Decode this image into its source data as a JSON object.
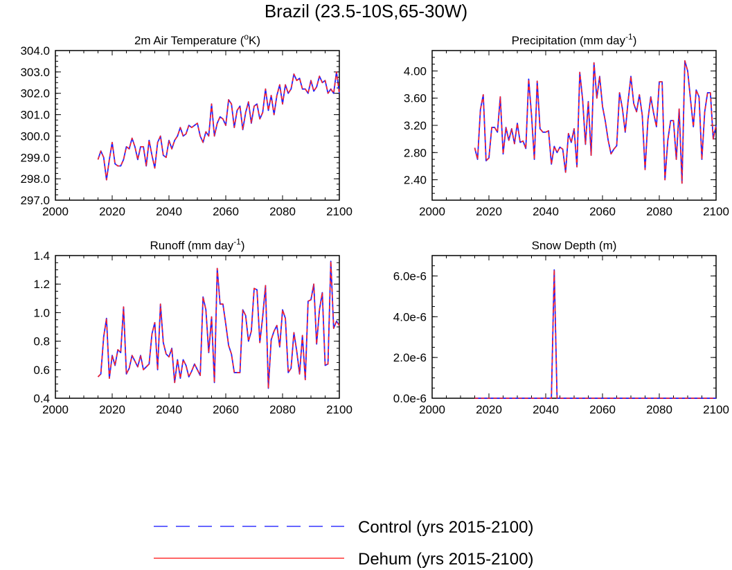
{
  "figure_title": "Brazil (23.5-10S,65-30W)",
  "legend": {
    "items": [
      {
        "label": "Control (yrs 2015-2100)",
        "color": "#3333ff",
        "style": "dashed"
      },
      {
        "label": "Dehum (yrs 2015-2100)",
        "color": "#ff3333",
        "style": "solid"
      }
    ]
  },
  "colors": {
    "control": "#2222ff",
    "dehum": "#ff2222"
  },
  "chart_data": [
    {
      "type": "line",
      "title": "2m Air Temperature (",
      "title_sup": "o",
      "title_tail": "K)",
      "xlim": [
        2000,
        2100
      ],
      "ylim": [
        297.0,
        304.0
      ],
      "xticks": [
        2000,
        2020,
        2040,
        2060,
        2080,
        2100
      ],
      "yticks": [
        297.0,
        298.0,
        299.0,
        300.0,
        301.0,
        302.0,
        303.0,
        304.0
      ],
      "ytick_labels": [
        "297.0",
        "298.0",
        "299.0",
        "300.0",
        "301.0",
        "302.0",
        "303.0",
        "304.0"
      ],
      "x_start": 2015,
      "series": [
        {
          "name": "Control (yrs 2015-2100)",
          "values": [
            298.9,
            299.3,
            299.0,
            297.95,
            298.9,
            299.7,
            298.7,
            298.6,
            298.6,
            298.9,
            299.5,
            299.4,
            299.9,
            299.5,
            298.9,
            299.5,
            299.5,
            298.6,
            299.8,
            299.1,
            298.5,
            299.7,
            300.0,
            299.1,
            299.0,
            299.8,
            299.4,
            299.8,
            300.0,
            300.4,
            300.0,
            300.1,
            300.5,
            300.4,
            300.5,
            300.6,
            300.0,
            299.7,
            300.2,
            300.0,
            301.5,
            300.0,
            300.6,
            300.9,
            300.8,
            300.5,
            301.7,
            301.5,
            300.4,
            301.2,
            301.4,
            300.3,
            301.1,
            301.6,
            300.6,
            301.4,
            301.5,
            300.8,
            301.1,
            302.2,
            301.2,
            301.9,
            301.0,
            301.9,
            302.4,
            301.5,
            302.4,
            302.0,
            302.2,
            302.9,
            302.6,
            302.7,
            302.2,
            302.2,
            302.0,
            302.6,
            302.1,
            302.3,
            302.8,
            302.5,
            302.6,
            302.0,
            302.2,
            302.0,
            303.0,
            302.0
          ]
        },
        {
          "name": "Dehum (yrs 2015-2100)",
          "values": [
            298.9,
            299.3,
            299.0,
            297.95,
            298.9,
            299.7,
            298.7,
            298.6,
            298.6,
            298.9,
            299.5,
            299.4,
            299.9,
            299.5,
            298.9,
            299.5,
            299.5,
            298.6,
            299.8,
            299.1,
            298.5,
            299.7,
            300.0,
            299.1,
            299.0,
            299.8,
            299.4,
            299.8,
            300.0,
            300.4,
            300.0,
            300.1,
            300.5,
            300.4,
            300.5,
            300.6,
            300.0,
            299.7,
            300.2,
            300.0,
            301.5,
            300.0,
            300.6,
            300.9,
            300.8,
            300.5,
            301.7,
            301.5,
            300.4,
            301.2,
            301.4,
            300.3,
            301.1,
            301.6,
            300.6,
            301.4,
            301.5,
            300.8,
            301.1,
            302.2,
            301.2,
            301.9,
            301.0,
            301.9,
            302.4,
            301.5,
            302.4,
            302.0,
            302.2,
            302.9,
            302.6,
            302.7,
            302.2,
            302.2,
            302.0,
            302.6,
            302.1,
            302.3,
            302.8,
            302.5,
            302.6,
            302.0,
            302.2,
            302.0,
            303.0,
            302.0
          ]
        }
      ]
    },
    {
      "type": "line",
      "title": "Precipitation (mm day",
      "title_sup": "-1",
      "title_tail": ")",
      "xlim": [
        2000,
        2100
      ],
      "ylim": [
        2.1,
        4.3
      ],
      "xticks": [
        2000,
        2020,
        2040,
        2060,
        2080,
        2100
      ],
      "yticks": [
        2.4,
        2.8,
        3.2,
        3.6,
        4.0
      ],
      "ytick_labels": [
        "2.40",
        "2.80",
        "3.20",
        "3.60",
        "4.00"
      ],
      "x_start": 2015,
      "series": [
        {
          "name": "Control (yrs 2015-2100)",
          "values": [
            2.87,
            2.7,
            3.43,
            3.65,
            2.68,
            2.72,
            3.17,
            3.17,
            3.1,
            3.62,
            2.78,
            3.17,
            2.98,
            3.15,
            2.93,
            3.23,
            2.95,
            2.97,
            2.86,
            3.88,
            3.35,
            2.7,
            3.85,
            3.15,
            3.1,
            3.1,
            3.12,
            2.63,
            2.89,
            2.8,
            2.88,
            2.85,
            2.51,
            3.08,
            2.95,
            3.15,
            2.59,
            3.98,
            3.58,
            2.92,
            3.55,
            2.76,
            4.12,
            3.6,
            3.92,
            3.48,
            3.26,
            2.98,
            2.78,
            2.85,
            2.9,
            3.68,
            3.45,
            3.1,
            3.55,
            3.92,
            3.52,
            3.4,
            3.65,
            3.35,
            2.55,
            3.28,
            3.62,
            3.38,
            3.18,
            3.84,
            3.84,
            2.4,
            2.98,
            3.27,
            3.27,
            2.7,
            3.44,
            2.35,
            4.15,
            4.0,
            3.58,
            3.18,
            3.72,
            3.62,
            2.7,
            3.4,
            3.68,
            3.68,
            3.0,
            3.2
          ]
        },
        {
          "name": "Dehum (yrs 2015-2100)",
          "values": [
            2.87,
            2.7,
            3.43,
            3.65,
            2.68,
            2.72,
            3.17,
            3.17,
            3.1,
            3.62,
            2.78,
            3.17,
            2.98,
            3.15,
            2.93,
            3.23,
            2.95,
            2.97,
            2.86,
            3.88,
            3.35,
            2.7,
            3.85,
            3.15,
            3.1,
            3.1,
            3.12,
            2.63,
            2.89,
            2.8,
            2.88,
            2.85,
            2.51,
            3.08,
            2.95,
            3.15,
            2.59,
            3.98,
            3.58,
            2.92,
            3.55,
            2.76,
            4.12,
            3.6,
            3.92,
            3.48,
            3.26,
            2.98,
            2.78,
            2.85,
            2.9,
            3.68,
            3.45,
            3.1,
            3.55,
            3.92,
            3.52,
            3.4,
            3.65,
            3.35,
            2.55,
            3.28,
            3.62,
            3.38,
            3.18,
            3.84,
            3.84,
            2.4,
            2.98,
            3.27,
            3.27,
            2.7,
            3.44,
            2.35,
            4.15,
            4.0,
            3.58,
            3.18,
            3.72,
            3.62,
            2.7,
            3.4,
            3.68,
            3.68,
            3.0,
            3.2
          ]
        }
      ]
    },
    {
      "type": "line",
      "title": "Runoff (mm day",
      "title_sup": "-1",
      "title_tail": ")",
      "xlim": [
        2000,
        2100
      ],
      "ylim": [
        0.4,
        1.4
      ],
      "xticks": [
        2000,
        2020,
        2040,
        2060,
        2080,
        2100
      ],
      "yticks": [
        0.4,
        0.6,
        0.8,
        1.0,
        1.2,
        1.4
      ],
      "ytick_labels": [
        "0.4",
        "0.6",
        "0.8",
        "1.0",
        "1.2",
        "1.4"
      ],
      "x_start": 2015,
      "series": [
        {
          "name": "Control (yrs 2015-2100)",
          "values": [
            0.55,
            0.57,
            0.83,
            0.96,
            0.54,
            0.7,
            0.63,
            0.74,
            0.72,
            1.04,
            0.57,
            0.61,
            0.7,
            0.66,
            0.62,
            0.7,
            0.6,
            0.62,
            0.64,
            0.85,
            0.93,
            0.6,
            1.06,
            0.79,
            0.71,
            0.69,
            0.75,
            0.51,
            0.67,
            0.54,
            0.67,
            0.63,
            0.55,
            0.59,
            0.64,
            0.6,
            0.56,
            1.11,
            1.02,
            0.72,
            0.97,
            0.51,
            1.31,
            1.06,
            1.06,
            0.92,
            0.77,
            0.71,
            0.58,
            0.58,
            0.58,
            1.02,
            0.98,
            0.8,
            0.87,
            1.17,
            1.16,
            0.79,
            0.97,
            1.19,
            0.47,
            0.81,
            0.87,
            0.91,
            0.76,
            1.02,
            0.96,
            0.58,
            0.61,
            0.86,
            0.73,
            0.57,
            0.84,
            0.53,
            1.08,
            1.09,
            1.2,
            0.78,
            1.02,
            1.14,
            0.63,
            0.64,
            1.36,
            0.89,
            0.94,
            0.91
          ]
        },
        {
          "name": "Dehum (yrs 2015-2100)",
          "values": [
            0.55,
            0.57,
            0.83,
            0.96,
            0.54,
            0.7,
            0.63,
            0.74,
            0.72,
            1.04,
            0.57,
            0.61,
            0.7,
            0.66,
            0.62,
            0.7,
            0.6,
            0.62,
            0.64,
            0.85,
            0.93,
            0.6,
            1.06,
            0.79,
            0.71,
            0.69,
            0.75,
            0.51,
            0.67,
            0.54,
            0.67,
            0.63,
            0.55,
            0.59,
            0.64,
            0.6,
            0.56,
            1.11,
            1.02,
            0.72,
            0.97,
            0.51,
            1.31,
            1.06,
            1.06,
            0.92,
            0.77,
            0.71,
            0.58,
            0.58,
            0.58,
            1.02,
            0.98,
            0.8,
            0.87,
            1.17,
            1.16,
            0.79,
            0.97,
            1.19,
            0.47,
            0.81,
            0.87,
            0.91,
            0.76,
            1.02,
            0.96,
            0.58,
            0.61,
            0.86,
            0.73,
            0.57,
            0.84,
            0.53,
            1.08,
            1.09,
            1.2,
            0.78,
            1.02,
            1.14,
            0.63,
            0.64,
            1.36,
            0.89,
            0.94,
            0.91
          ]
        }
      ]
    },
    {
      "type": "line",
      "title": "Snow Depth (m)",
      "title_sup": "",
      "title_tail": "",
      "xlim": [
        2000,
        2100
      ],
      "ylim": [
        0,
        7e-06
      ],
      "xticks": [
        2000,
        2020,
        2040,
        2060,
        2080,
        2100
      ],
      "yticks": [
        0,
        2e-06,
        4e-06,
        6e-06
      ],
      "ytick_labels": [
        "0.0e-6",
        "2.0e-6",
        "4.0e-6",
        "6.0e-6"
      ],
      "x_start": 2015,
      "series": [
        {
          "name": "Control (yrs 2015-2100)",
          "values": [
            0,
            0,
            0,
            0,
            0,
            0,
            0,
            0,
            0,
            0,
            0,
            0,
            0,
            0,
            0,
            0,
            0,
            0,
            0,
            0,
            0,
            0,
            0,
            0,
            0,
            0,
            0,
            0,
            6.3e-06,
            0,
            0,
            0,
            0,
            0,
            0,
            0,
            0,
            0,
            0,
            0,
            0,
            0,
            0,
            0,
            0,
            0,
            0,
            0,
            0,
            0,
            0,
            0,
            0,
            0,
            0,
            0,
            0,
            0,
            0,
            0,
            0,
            0,
            0,
            0,
            0,
            0,
            0,
            0,
            0,
            0,
            0,
            0,
            0,
            0,
            0,
            0,
            0,
            0,
            0,
            0,
            0,
            0,
            0,
            0,
            0,
            0
          ]
        },
        {
          "name": "Dehum (yrs 2015-2100)",
          "values": [
            0,
            0,
            0,
            0,
            0,
            0,
            0,
            0,
            0,
            0,
            0,
            0,
            0,
            0,
            0,
            0,
            0,
            0,
            0,
            0,
            0,
            0,
            0,
            0,
            0,
            0,
            0,
            0,
            6.3e-06,
            0,
            0,
            0,
            0,
            0,
            0,
            0,
            0,
            0,
            0,
            0,
            0,
            0,
            0,
            0,
            0,
            0,
            0,
            0,
            0,
            0,
            0,
            0,
            0,
            0,
            0,
            0,
            0,
            0,
            0,
            0,
            0,
            0,
            0,
            0,
            0,
            0,
            0,
            0,
            0,
            0,
            0,
            0,
            0,
            0,
            0,
            0,
            0,
            0,
            0,
            0,
            0,
            0,
            0,
            0,
            0,
            0
          ]
        }
      ]
    }
  ]
}
